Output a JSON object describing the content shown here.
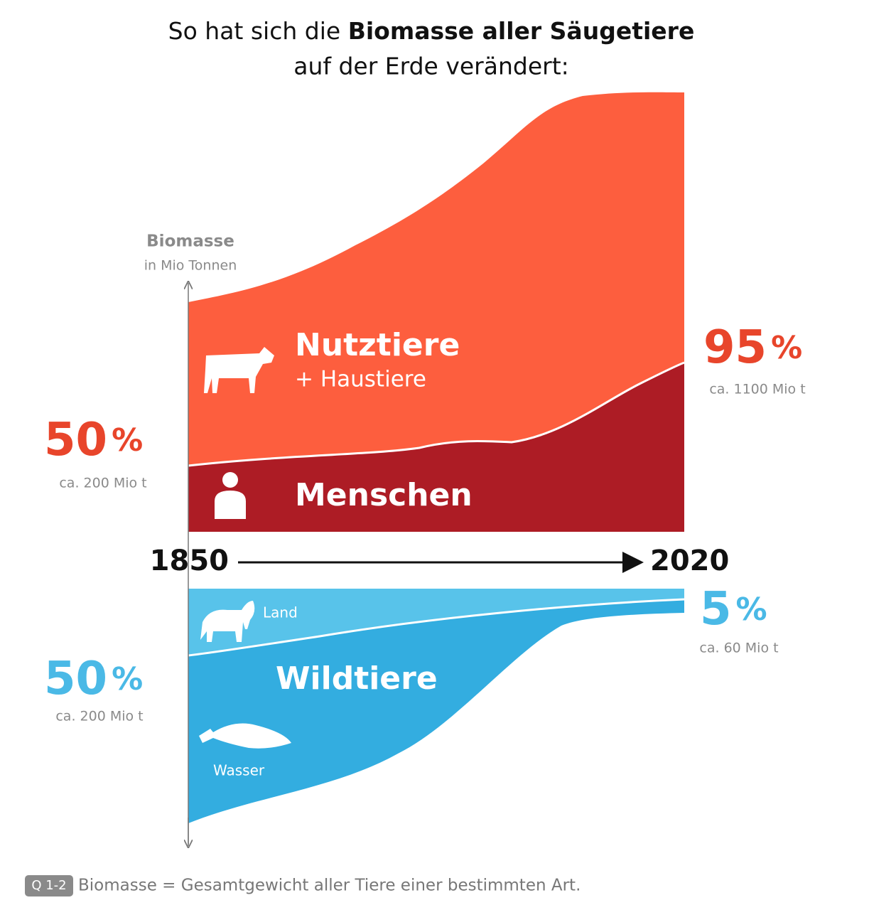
{
  "header": {
    "title_line1_before": "So hat sich die ",
    "title_line1_bold": "Biomasse aller Säugetiere",
    "title_line2": "auf der Erde verändert:"
  },
  "axis": {
    "label": "Biomasse",
    "unit": "in Mio Tonnen",
    "start": "1850",
    "end": "2020"
  },
  "domestic": {
    "label": "Nutztiere",
    "sublabel": "+ Haustiere",
    "humans": "Menschen",
    "share_1850": "50",
    "share_2020": "95",
    "percent_sign": "%",
    "amount_1850": "ca. 200 Mio t",
    "amount_2020": "ca. 1100 Mio t"
  },
  "wild": {
    "label": "Wildtiere",
    "land": "Land",
    "water": "Wasser",
    "share_1850": "50",
    "share_2020": "5",
    "percent_sign": "%",
    "amount_1850": "ca. 200 Mio t",
    "amount_2020": "ca. 60 Mio t"
  },
  "footer": {
    "badge": "Q 1-2",
    "note": "Biomasse = Gesamtgewicht aller Tiere einer bestimmten Art."
  }
}
